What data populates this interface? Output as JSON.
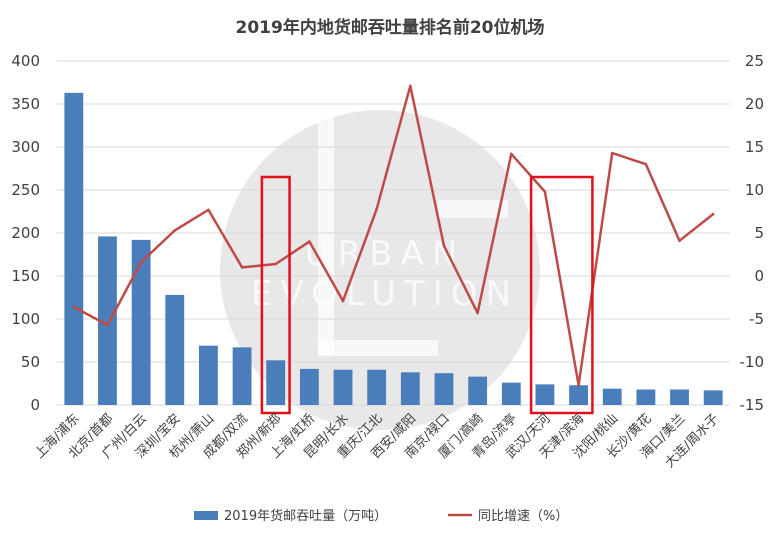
{
  "chart_data": {
    "type": "bar",
    "title": "2019年内地货邮吞吐量排名前20位机场",
    "categories": [
      "上海/浦东",
      "北京/首都",
      "广州/白云",
      "深圳/宝安",
      "杭州/萧山",
      "成都/双流",
      "郑州/新郑",
      "上海/虹桥",
      "昆明/长水",
      "重庆/江北",
      "西安/咸阳",
      "南京/禄口",
      "厦门/高崎",
      "青岛/流亭",
      "武汉/天河",
      "天津/滨海",
      "沈阳/桃仙",
      "长沙/黄花",
      "海口/美兰",
      "大连/周水子"
    ],
    "series": [
      {
        "name": "2019年货邮吞吐量（万吨）",
        "type": "bar",
        "axis": "left",
        "color": "#4a7ebb",
        "values": [
          363,
          196,
          192,
          128,
          69,
          67,
          52,
          42,
          41,
          41,
          38,
          37,
          33,
          26,
          24,
          23,
          19,
          18,
          18,
          17
        ]
      },
      {
        "name": "同比增速（%）",
        "type": "line",
        "axis": "right",
        "color": "#be4b48",
        "values": [
          -3.6,
          -5.7,
          1.6,
          5.3,
          7.7,
          1.0,
          1.4,
          4.0,
          -2.9,
          7.8,
          22.1,
          3.5,
          -4.3,
          14.2,
          9.8,
          -12.7,
          14.3,
          13.0,
          4.1,
          7.2
        ]
      }
    ],
    "y_left": {
      "min": 0,
      "max": 400,
      "step": 50
    },
    "y_right": {
      "min": -15,
      "max": 25,
      "step": 5
    },
    "grid": true,
    "legend": "bottom",
    "highlights": [
      {
        "categories": [
          "郑州/新郑"
        ],
        "color": "#e0101a"
      },
      {
        "categories": [
          "武汉/天河",
          "天津/滨海"
        ],
        "color": "#e0101a"
      }
    ]
  },
  "watermark": {
    "logo": "UE",
    "line1": "URBAN",
    "line2": "EVOLUTION"
  }
}
